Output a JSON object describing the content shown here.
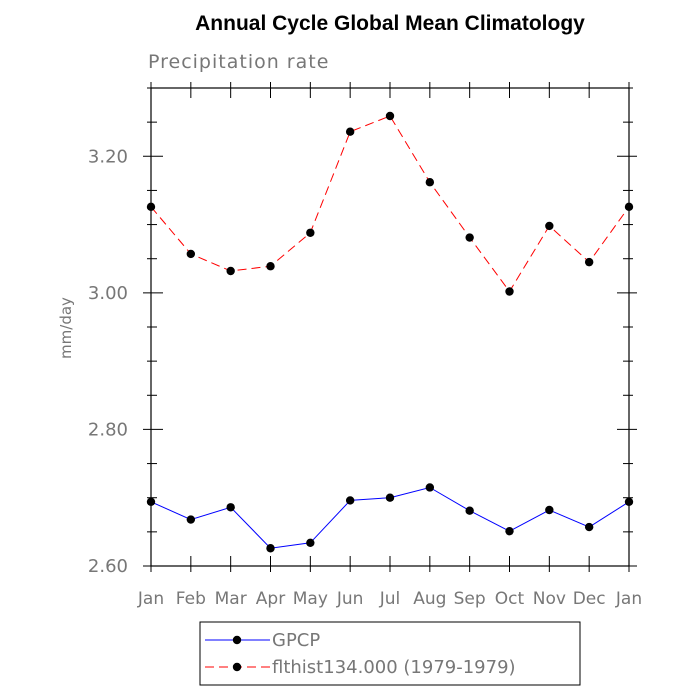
{
  "chart_data": {
    "type": "line",
    "title": "Annual Cycle Global Mean Climatology",
    "subtitle": "Precipitation rate",
    "ylabel": "mm/day",
    "xlabel": "",
    "categories": [
      "Jan",
      "Feb",
      "Mar",
      "Apr",
      "May",
      "Jun",
      "Jul",
      "Aug",
      "Sep",
      "Oct",
      "Nov",
      "Dec",
      "Jan"
    ],
    "ylim": [
      2.6,
      3.3
    ],
    "yticks": [
      2.6,
      2.8,
      3.0,
      3.2
    ],
    "ytick_labels": [
      "2.60",
      "2.80",
      "3.00",
      "3.20"
    ],
    "y_minor_step": 0.05,
    "grid": false,
    "legend_position": "bottom",
    "series": [
      {
        "name": "GPCP",
        "color": "#0000ff",
        "line_style": "solid",
        "marker": "filled-circle",
        "values": [
          2.694,
          2.668,
          2.686,
          2.626,
          2.634,
          2.696,
          2.7,
          2.715,
          2.681,
          2.651,
          2.682,
          2.657,
          2.694
        ]
      },
      {
        "name": "flthist134.000 (1979-1979)",
        "color": "#ff0000",
        "line_style": "dashed",
        "marker": "filled-circle",
        "values": [
          3.126,
          3.057,
          3.032,
          3.039,
          3.088,
          3.236,
          3.259,
          3.162,
          3.081,
          3.002,
          3.098,
          3.045,
          3.126
        ]
      }
    ]
  }
}
